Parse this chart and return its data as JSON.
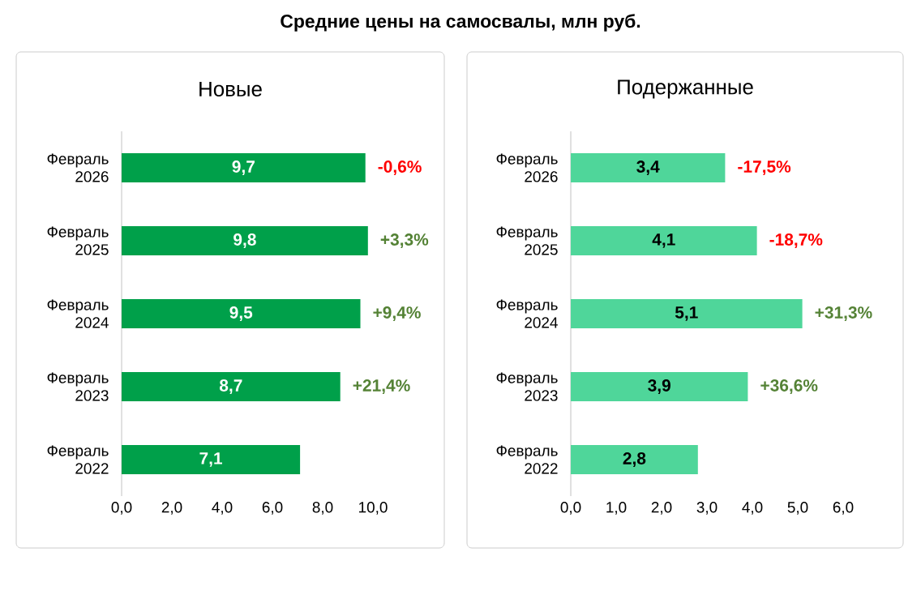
{
  "chart_data": [
    {
      "type": "bar",
      "orientation": "horizontal",
      "title": "Новые",
      "categories": [
        "Февраль 2026",
        "Февраль 2025",
        "Февраль 2024",
        "Февраль 2023",
        "Февраль 2022"
      ],
      "values": [
        9.7,
        9.8,
        9.5,
        8.7,
        7.1
      ],
      "color": "#00a04a",
      "value_labels": [
        "9,7",
        "9,8",
        "9,5",
        "8,7",
        "7,1"
      ],
      "xlim": [
        0,
        10
      ],
      "xticks": [
        {
          "value": 0,
          "label": "0,0"
        },
        {
          "value": 2,
          "label": "2,0"
        },
        {
          "value": 4,
          "label": "4,0"
        },
        {
          "value": 6,
          "label": "6,0"
        },
        {
          "value": 8,
          "label": "8,0"
        },
        {
          "value": 10,
          "label": "10,0"
        }
      ],
      "annotations": [
        "Средние цены на самосвалы, млн руб.",
        {
          "text": "-0,6%",
          "x": 9.7,
          "y": "Февраль 2026"
        },
        {
          "text": "+3,3%",
          "x": 9.8,
          "y": "Февраль 2025"
        },
        {
          "text": "+9,4%",
          "x": 9.5,
          "y": "Февраль 2024"
        },
        {
          "text": "+21,4%",
          "x": 8.7,
          "y": "Февраль 2023"
        }
      ]
    },
    {
      "type": "bar",
      "orientation": "horizontal",
      "title": "Подержанные",
      "categories": [
        "Февраль 2026",
        "Февраль 2025",
        "Февраль 2024",
        "Февраль 2023",
        "Февраль 2022"
      ],
      "values": [
        3.4,
        4.1,
        5.1,
        3.9,
        2.8
      ],
      "color": "#4fd69a",
      "value_labels": [
        "3,4",
        "4,1",
        "5,1",
        "3,9",
        "2,8"
      ],
      "xlim": [
        0,
        6
      ],
      "xticks": [
        {
          "value": 0,
          "label": "0,0"
        },
        {
          "value": 1,
          "label": "1,0"
        },
        {
          "value": 2,
          "label": "2,0"
        },
        {
          "value": 3,
          "label": "3,0"
        },
        {
          "value": 4,
          "label": "4,0"
        },
        {
          "value": 5,
          "label": "5,0"
        },
        {
          "value": 6,
          "label": "6,0"
        }
      ],
      "annotations": [
        {
          "text": "-17,5%",
          "x": 3.4,
          "y": "Февраль 2026"
        },
        {
          "text": "-18,7%",
          "x": 4.1,
          "y": "Февраль 2025"
        },
        {
          "text": "+31,3%",
          "x": 5.1,
          "y": "Февраль 2024"
        },
        {
          "text": "+36,6%",
          "x": 3.9,
          "y": "Февраль 2023"
        }
      ]
    }
  ]
}
